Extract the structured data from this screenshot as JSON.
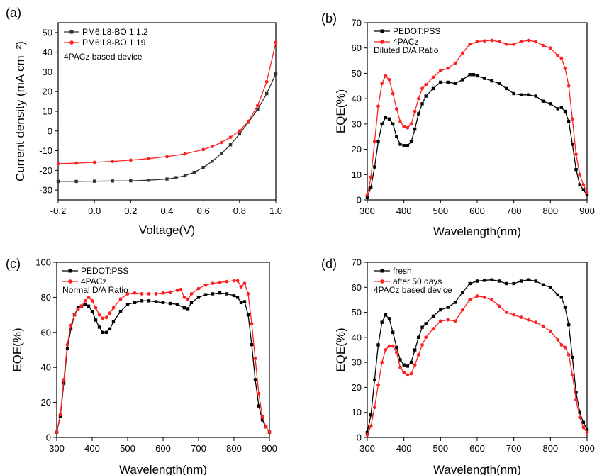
{
  "chart_data": [
    {
      "panel_label": "(a)",
      "type": "line",
      "xlabel": "Voltage(V)",
      "ylabel": "Current density (mA cm⁻²)",
      "xlim": [
        -0.2,
        1.0
      ],
      "ylim": [
        -35,
        55
      ],
      "xticks": [
        -0.2,
        0.0,
        0.2,
        0.4,
        0.6,
        0.8,
        1.0
      ],
      "xtick_labels": [
        "-0.2",
        "0.0",
        "0.2",
        "0.4",
        "0.6",
        "0.8",
        "1.0"
      ],
      "yticks": [
        -30,
        -20,
        -10,
        0,
        10,
        20,
        30,
        40,
        50
      ],
      "ytick_labels": [
        "-30",
        "-20",
        "-10",
        "0",
        "10",
        "20",
        "30",
        "40",
        "50"
      ],
      "legend_position": "top-left",
      "annotations": [
        "4PACz based device"
      ],
      "series": [
        {
          "name": "PM6:L8-BO 1:1.2",
          "color": "#333333",
          "marker": "square",
          "x": [
            -0.2,
            -0.1,
            0.0,
            0.1,
            0.2,
            0.3,
            0.4,
            0.45,
            0.5,
            0.55,
            0.6,
            0.65,
            0.7,
            0.75,
            0.8,
            0.85,
            0.9,
            0.95,
            1.0
          ],
          "y": [
            -25.6,
            -25.6,
            -25.5,
            -25.4,
            -25.3,
            -25.0,
            -24.4,
            -23.7,
            -22.7,
            -21.0,
            -18.5,
            -15.3,
            -11.5,
            -7.0,
            -1.5,
            4.5,
            11.0,
            19.0,
            29.0
          ]
        },
        {
          "name": "PM6:L8-BO 1:19",
          "color": "#ff2020",
          "marker": "circle",
          "x": [
            -0.2,
            -0.1,
            0.0,
            0.1,
            0.2,
            0.3,
            0.4,
            0.5,
            0.6,
            0.65,
            0.7,
            0.75,
            0.8,
            0.85,
            0.9,
            0.95,
            1.0
          ],
          "y": [
            -16.6,
            -16.3,
            -15.9,
            -15.4,
            -14.8,
            -14.0,
            -13.0,
            -11.6,
            -9.4,
            -7.8,
            -5.8,
            -3.2,
            0.0,
            5.0,
            13.0,
            25.0,
            45.0
          ]
        }
      ]
    },
    {
      "panel_label": "(b)",
      "type": "line",
      "xlabel": "Wavelength(nm)",
      "ylabel": "EQE(%)",
      "xlim": [
        300,
        900
      ],
      "ylim": [
        0,
        70
      ],
      "xticks": [
        300,
        400,
        500,
        600,
        700,
        800,
        900
      ],
      "xtick_labels": [
        "300",
        "400",
        "500",
        "600",
        "700",
        "800",
        "900"
      ],
      "yticks": [
        0,
        10,
        20,
        30,
        40,
        50,
        60,
        70
      ],
      "ytick_labels": [
        "0",
        "10",
        "20",
        "30",
        "40",
        "50",
        "60",
        "70"
      ],
      "legend_position": "top-left",
      "annotations": [
        "Diluted D/A Ratio"
      ],
      "series": [
        {
          "name": "PEDOT:PSS",
          "color": "#000000",
          "marker": "square",
          "x": [
            300,
            310,
            320,
            330,
            340,
            350,
            360,
            370,
            380,
            390,
            400,
            410,
            420,
            430,
            440,
            450,
            460,
            480,
            500,
            520,
            540,
            560,
            580,
            590,
            600,
            620,
            640,
            660,
            680,
            700,
            720,
            740,
            760,
            780,
            800,
            820,
            830,
            840,
            850,
            860,
            870,
            880,
            890,
            900
          ],
          "y": [
            1,
            5,
            13,
            23,
            30,
            32.5,
            32,
            30,
            25,
            22,
            21.5,
            21.5,
            23,
            28,
            34,
            38,
            41,
            44,
            46.5,
            46.5,
            46,
            47.5,
            49.5,
            49.5,
            49,
            48,
            47,
            46,
            44,
            42,
            41.5,
            41.5,
            41,
            39,
            38,
            36,
            36.5,
            35,
            31,
            22,
            12,
            6,
            4,
            2
          ]
        },
        {
          "name": "4PACz",
          "color": "#ff2020",
          "marker": "circle",
          "x": [
            300,
            310,
            320,
            330,
            340,
            350,
            360,
            370,
            380,
            390,
            400,
            410,
            420,
            430,
            440,
            450,
            460,
            480,
            500,
            520,
            540,
            560,
            580,
            600,
            620,
            640,
            660,
            680,
            700,
            720,
            740,
            760,
            780,
            800,
            820,
            830,
            840,
            850,
            860,
            870,
            880,
            890,
            900
          ],
          "y": [
            2,
            9,
            23,
            37,
            46,
            49,
            47.5,
            42,
            36,
            31,
            29,
            28.5,
            30,
            35,
            40,
            44,
            45.5,
            48.5,
            51,
            52,
            54,
            58,
            61.5,
            62.5,
            62.8,
            63,
            62.5,
            61.5,
            61.5,
            62.5,
            63,
            62.5,
            61,
            60,
            57,
            56,
            52,
            45,
            32,
            18,
            10,
            6,
            3
          ]
        }
      ]
    },
    {
      "panel_label": "(c)",
      "type": "line",
      "xlabel": "Wavelength(nm)",
      "ylabel": "EQE(%)",
      "xlim": [
        300,
        900
      ],
      "ylim": [
        0,
        100
      ],
      "xticks": [
        300,
        400,
        500,
        600,
        700,
        800,
        900
      ],
      "xtick_labels": [
        "300",
        "400",
        "500",
        "600",
        "700",
        "800",
        "900"
      ],
      "yticks": [
        0,
        20,
        40,
        60,
        80,
        100
      ],
      "ytick_labels": [
        "0",
        "20",
        "40",
        "60",
        "80",
        "100"
      ],
      "legend_position": "top-left",
      "annotations": [
        "Normal D/A Ratio"
      ],
      "series": [
        {
          "name": "PEDOT:PSS",
          "color": "#000000",
          "marker": "square",
          "x": [
            300,
            310,
            320,
            330,
            340,
            350,
            360,
            370,
            380,
            390,
            400,
            410,
            420,
            430,
            440,
            450,
            460,
            480,
            500,
            520,
            540,
            560,
            580,
            600,
            620,
            640,
            660,
            670,
            680,
            700,
            720,
            740,
            760,
            780,
            800,
            810,
            820,
            830,
            840,
            850,
            860,
            870,
            880,
            890,
            900
          ],
          "y": [
            3,
            12,
            31,
            51,
            62,
            70,
            74,
            75,
            76,
            75,
            72,
            67,
            63,
            60,
            60,
            62,
            66,
            72,
            76,
            77,
            78,
            78,
            77.5,
            77,
            76.5,
            76,
            74,
            73.5,
            77,
            80,
            81.5,
            82,
            82.5,
            82,
            81,
            80,
            77,
            77.5,
            70,
            53,
            33,
            18,
            10,
            6,
            3
          ]
        },
        {
          "name": "4PACz",
          "color": "#ff2020",
          "marker": "circle",
          "x": [
            300,
            310,
            320,
            330,
            340,
            350,
            360,
            370,
            380,
            390,
            400,
            410,
            420,
            430,
            440,
            450,
            460,
            480,
            500,
            520,
            540,
            560,
            580,
            600,
            620,
            640,
            650,
            660,
            670,
            680,
            700,
            720,
            740,
            760,
            780,
            800,
            810,
            820,
            830,
            840,
            850,
            860,
            870,
            880,
            890,
            900
          ],
          "y": [
            3,
            13,
            33,
            53,
            64,
            70,
            73,
            75,
            78,
            80,
            78,
            74,
            70,
            68,
            68.5,
            71,
            74,
            79,
            82,
            82.5,
            82,
            82,
            82,
            82.5,
            83,
            84,
            84.5,
            80,
            79,
            82,
            85,
            87,
            88,
            88.5,
            89,
            89.5,
            89.5,
            86,
            88,
            82,
            65,
            45,
            25,
            12,
            6,
            3
          ]
        }
      ]
    },
    {
      "panel_label": "(d)",
      "type": "line",
      "xlabel": "Wavelength(nm)",
      "ylabel": "EQE(%)",
      "xlim": [
        300,
        900
      ],
      "ylim": [
        0,
        70
      ],
      "xticks": [
        300,
        400,
        500,
        600,
        700,
        800,
        900
      ],
      "xtick_labels": [
        "300",
        "400",
        "500",
        "600",
        "700",
        "800",
        "900"
      ],
      "yticks": [
        0,
        10,
        20,
        30,
        40,
        50,
        60,
        70
      ],
      "ytick_labels": [
        "0",
        "10",
        "20",
        "30",
        "40",
        "50",
        "60",
        "70"
      ],
      "legend_position": "top-left",
      "annotations": [
        "4PACz based device"
      ],
      "series": [
        {
          "name": "fresh",
          "color": "#000000",
          "marker": "square",
          "x": [
            300,
            310,
            320,
            330,
            340,
            350,
            360,
            370,
            380,
            390,
            400,
            410,
            420,
            430,
            440,
            450,
            460,
            480,
            500,
            520,
            540,
            560,
            580,
            600,
            620,
            640,
            660,
            680,
            700,
            720,
            740,
            760,
            780,
            800,
            820,
            830,
            840,
            850,
            860,
            870,
            880,
            890,
            900
          ],
          "y": [
            2,
            9,
            23,
            37,
            46,
            49,
            47.5,
            42,
            36,
            31,
            29,
            28.5,
            30,
            35,
            40,
            44,
            45.5,
            48.5,
            51,
            52,
            54,
            58,
            61.5,
            62.5,
            62.8,
            63,
            62.5,
            61.5,
            61.5,
            62.5,
            63,
            62.5,
            61,
            60,
            57,
            56,
            52,
            45,
            32,
            18,
            10,
            6,
            3
          ]
        },
        {
          "name": "after 50 days",
          "color": "#ff2020",
          "marker": "circle",
          "x": [
            300,
            310,
            320,
            330,
            340,
            350,
            360,
            370,
            380,
            390,
            400,
            410,
            420,
            430,
            440,
            450,
            460,
            480,
            500,
            520,
            540,
            560,
            580,
            600,
            620,
            640,
            660,
            680,
            700,
            720,
            740,
            760,
            780,
            800,
            820,
            830,
            840,
            850,
            860,
            870,
            880,
            890,
            900
          ],
          "y": [
            1,
            4.5,
            12,
            21,
            30,
            35,
            36.5,
            36.5,
            34,
            28,
            26,
            25,
            25.5,
            29,
            33,
            37,
            40,
            43.5,
            46.5,
            47,
            46.5,
            51,
            55,
            56.5,
            56,
            55,
            52.5,
            50,
            49,
            48,
            47,
            46,
            44.5,
            42.5,
            39,
            37,
            36,
            33,
            25,
            15,
            8,
            4,
            2
          ]
        }
      ]
    }
  ]
}
